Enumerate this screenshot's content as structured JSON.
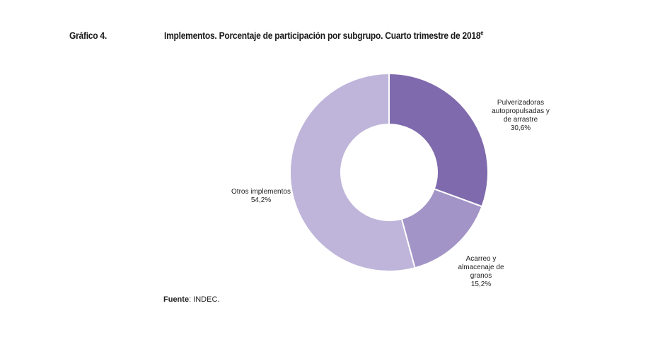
{
  "figure": {
    "label": "Gráfico 4.",
    "title": "Implementos. Porcentaje de participación por subgrupo. Cuarto trimestre de 2018",
    "title_superscript": "e"
  },
  "chart_data": {
    "type": "pie",
    "donut": true,
    "slices": [
      {
        "label_lines": [
          "Pulverizadoras",
          "autopropulsadas  y",
          "de arrastre"
        ],
        "value": 30.6,
        "value_label": "30,6%",
        "color": "#7f6aad"
      },
      {
        "label_lines": [
          "Acarreo y",
          "almacenaje de",
          "granos"
        ],
        "value": 15.2,
        "value_label": "15,2%",
        "color": "#a394c7"
      },
      {
        "label_lines": [
          "Otros implementos"
        ],
        "value": 54.2,
        "value_label": "54,2%",
        "color": "#bfb5da"
      }
    ]
  },
  "source": {
    "label": "Fuente",
    "text": ": INDEC."
  }
}
